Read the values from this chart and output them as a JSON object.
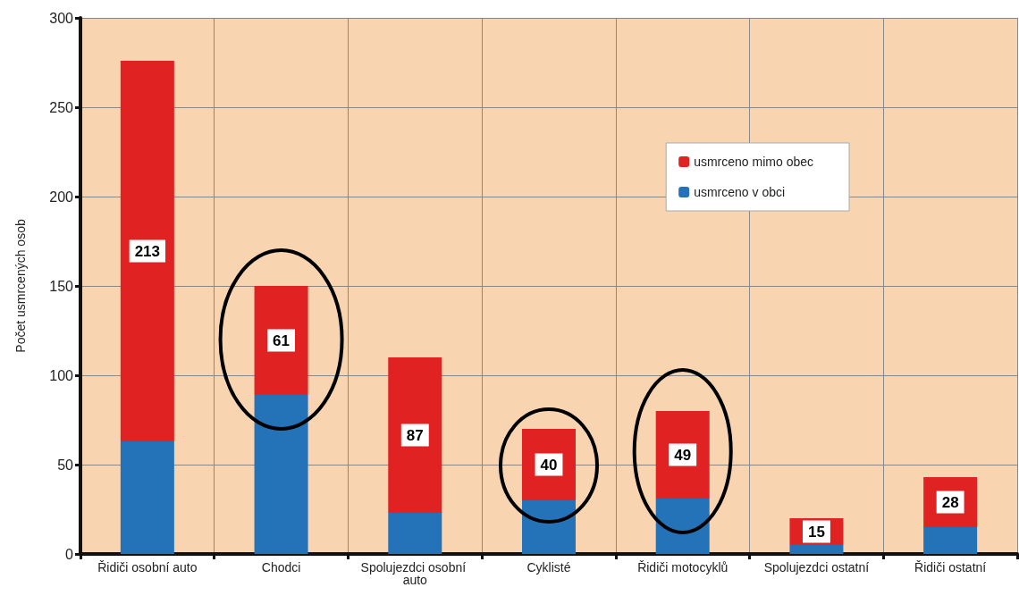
{
  "chart_data": {
    "type": "bar",
    "ylabel": "Počet usmrcených osob",
    "categories": [
      "Řidiči osobní auto",
      "Chodci",
      "Spolujezdci osobní auto",
      "Cyklisté",
      "Řidiči motocyklů",
      "Spolujezdci ostatní",
      "Řidiči ostatní"
    ],
    "stacked": true,
    "series": [
      {
        "name": "usmrceno v obci",
        "color": "#2472b8",
        "values": [
          63,
          89,
          23,
          30,
          31,
          5,
          15
        ]
      },
      {
        "name": "usmrceno mimo obec",
        "color": "#e02222",
        "values": [
          213,
          61,
          87,
          40,
          49,
          15,
          28
        ],
        "value_labels": [
          "213",
          "61",
          "87",
          "40",
          "49",
          "15",
          "28"
        ]
      }
    ],
    "ylim": [
      0,
      300
    ],
    "yticks": [
      0,
      50,
      100,
      150,
      200,
      250,
      300
    ],
    "grid": true,
    "legend": "top right"
  }
}
